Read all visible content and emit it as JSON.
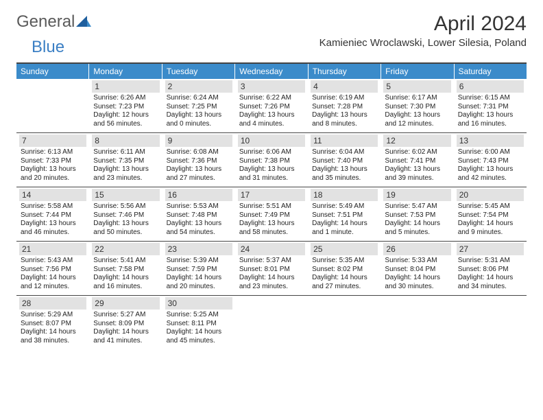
{
  "brand": {
    "general": "General",
    "blue": "Blue"
  },
  "title": "April 2024",
  "location": "Kamieniec Wroclawski, Lower Silesia, Poland",
  "colors": {
    "header_bg": "#3b8bca",
    "header_text": "#ffffff",
    "daynum_bg": "#e2e2e2",
    "border": "#444444",
    "logo_blue": "#3b7fc4",
    "text": "#222222",
    "background": "#ffffff"
  },
  "day_headers": [
    "Sunday",
    "Monday",
    "Tuesday",
    "Wednesday",
    "Thursday",
    "Friday",
    "Saturday"
  ],
  "weeks": [
    [
      {
        "num": "",
        "lines": []
      },
      {
        "num": "1",
        "lines": [
          "Sunrise: 6:26 AM",
          "Sunset: 7:23 PM",
          "Daylight: 12 hours",
          "and 56 minutes."
        ]
      },
      {
        "num": "2",
        "lines": [
          "Sunrise: 6:24 AM",
          "Sunset: 7:25 PM",
          "Daylight: 13 hours",
          "and 0 minutes."
        ]
      },
      {
        "num": "3",
        "lines": [
          "Sunrise: 6:22 AM",
          "Sunset: 7:26 PM",
          "Daylight: 13 hours",
          "and 4 minutes."
        ]
      },
      {
        "num": "4",
        "lines": [
          "Sunrise: 6:19 AM",
          "Sunset: 7:28 PM",
          "Daylight: 13 hours",
          "and 8 minutes."
        ]
      },
      {
        "num": "5",
        "lines": [
          "Sunrise: 6:17 AM",
          "Sunset: 7:30 PM",
          "Daylight: 13 hours",
          "and 12 minutes."
        ]
      },
      {
        "num": "6",
        "lines": [
          "Sunrise: 6:15 AM",
          "Sunset: 7:31 PM",
          "Daylight: 13 hours",
          "and 16 minutes."
        ]
      }
    ],
    [
      {
        "num": "7",
        "lines": [
          "Sunrise: 6:13 AM",
          "Sunset: 7:33 PM",
          "Daylight: 13 hours",
          "and 20 minutes."
        ]
      },
      {
        "num": "8",
        "lines": [
          "Sunrise: 6:11 AM",
          "Sunset: 7:35 PM",
          "Daylight: 13 hours",
          "and 23 minutes."
        ]
      },
      {
        "num": "9",
        "lines": [
          "Sunrise: 6:08 AM",
          "Sunset: 7:36 PM",
          "Daylight: 13 hours",
          "and 27 minutes."
        ]
      },
      {
        "num": "10",
        "lines": [
          "Sunrise: 6:06 AM",
          "Sunset: 7:38 PM",
          "Daylight: 13 hours",
          "and 31 minutes."
        ]
      },
      {
        "num": "11",
        "lines": [
          "Sunrise: 6:04 AM",
          "Sunset: 7:40 PM",
          "Daylight: 13 hours",
          "and 35 minutes."
        ]
      },
      {
        "num": "12",
        "lines": [
          "Sunrise: 6:02 AM",
          "Sunset: 7:41 PM",
          "Daylight: 13 hours",
          "and 39 minutes."
        ]
      },
      {
        "num": "13",
        "lines": [
          "Sunrise: 6:00 AM",
          "Sunset: 7:43 PM",
          "Daylight: 13 hours",
          "and 42 minutes."
        ]
      }
    ],
    [
      {
        "num": "14",
        "lines": [
          "Sunrise: 5:58 AM",
          "Sunset: 7:44 PM",
          "Daylight: 13 hours",
          "and 46 minutes."
        ]
      },
      {
        "num": "15",
        "lines": [
          "Sunrise: 5:56 AM",
          "Sunset: 7:46 PM",
          "Daylight: 13 hours",
          "and 50 minutes."
        ]
      },
      {
        "num": "16",
        "lines": [
          "Sunrise: 5:53 AM",
          "Sunset: 7:48 PM",
          "Daylight: 13 hours",
          "and 54 minutes."
        ]
      },
      {
        "num": "17",
        "lines": [
          "Sunrise: 5:51 AM",
          "Sunset: 7:49 PM",
          "Daylight: 13 hours",
          "and 58 minutes."
        ]
      },
      {
        "num": "18",
        "lines": [
          "Sunrise: 5:49 AM",
          "Sunset: 7:51 PM",
          "Daylight: 14 hours",
          "and 1 minute."
        ]
      },
      {
        "num": "19",
        "lines": [
          "Sunrise: 5:47 AM",
          "Sunset: 7:53 PM",
          "Daylight: 14 hours",
          "and 5 minutes."
        ]
      },
      {
        "num": "20",
        "lines": [
          "Sunrise: 5:45 AM",
          "Sunset: 7:54 PM",
          "Daylight: 14 hours",
          "and 9 minutes."
        ]
      }
    ],
    [
      {
        "num": "21",
        "lines": [
          "Sunrise: 5:43 AM",
          "Sunset: 7:56 PM",
          "Daylight: 14 hours",
          "and 12 minutes."
        ]
      },
      {
        "num": "22",
        "lines": [
          "Sunrise: 5:41 AM",
          "Sunset: 7:58 PM",
          "Daylight: 14 hours",
          "and 16 minutes."
        ]
      },
      {
        "num": "23",
        "lines": [
          "Sunrise: 5:39 AM",
          "Sunset: 7:59 PM",
          "Daylight: 14 hours",
          "and 20 minutes."
        ]
      },
      {
        "num": "24",
        "lines": [
          "Sunrise: 5:37 AM",
          "Sunset: 8:01 PM",
          "Daylight: 14 hours",
          "and 23 minutes."
        ]
      },
      {
        "num": "25",
        "lines": [
          "Sunrise: 5:35 AM",
          "Sunset: 8:02 PM",
          "Daylight: 14 hours",
          "and 27 minutes."
        ]
      },
      {
        "num": "26",
        "lines": [
          "Sunrise: 5:33 AM",
          "Sunset: 8:04 PM",
          "Daylight: 14 hours",
          "and 30 minutes."
        ]
      },
      {
        "num": "27",
        "lines": [
          "Sunrise: 5:31 AM",
          "Sunset: 8:06 PM",
          "Daylight: 14 hours",
          "and 34 minutes."
        ]
      }
    ],
    [
      {
        "num": "28",
        "lines": [
          "Sunrise: 5:29 AM",
          "Sunset: 8:07 PM",
          "Daylight: 14 hours",
          "and 38 minutes."
        ]
      },
      {
        "num": "29",
        "lines": [
          "Sunrise: 5:27 AM",
          "Sunset: 8:09 PM",
          "Daylight: 14 hours",
          "and 41 minutes."
        ]
      },
      {
        "num": "30",
        "lines": [
          "Sunrise: 5:25 AM",
          "Sunset: 8:11 PM",
          "Daylight: 14 hours",
          "and 45 minutes."
        ]
      },
      {
        "num": "",
        "lines": []
      },
      {
        "num": "",
        "lines": []
      },
      {
        "num": "",
        "lines": []
      },
      {
        "num": "",
        "lines": []
      }
    ]
  ]
}
